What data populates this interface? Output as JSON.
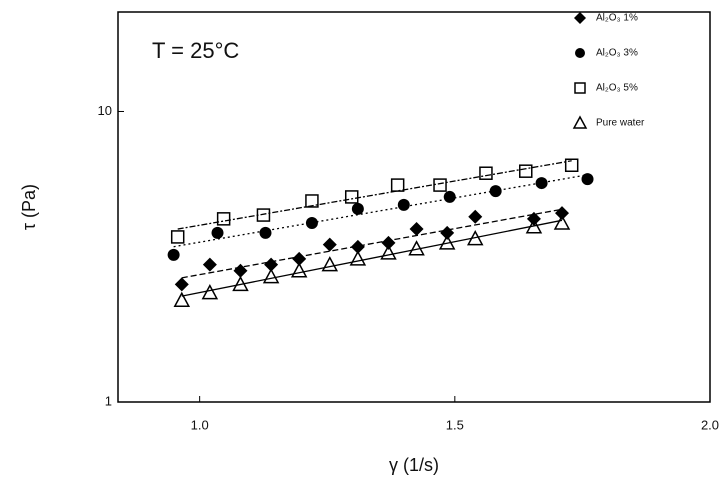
{
  "chart_data": {
    "type": "scatter",
    "annotation": "T = 25°C",
    "x_label": "γ (1/s)",
    "y_label": "τ (Pa)",
    "xlim": [
      0.84,
      2.0
    ],
    "ylim": [
      1,
      22
    ],
    "log_y": true,
    "trendlines": true,
    "xticks": [
      {
        "value": 1,
        "label": "1.0"
      },
      1.5,
      {
        "value": 2,
        "label": "2.0"
      }
    ],
    "yticks": [
      1,
      10
    ],
    "legend": "top-right",
    "series": [
      {
        "name": "Al₂O₃ 1%",
        "color": "#000000",
        "marker": "diamond",
        "x": [
          0.965,
          1.02,
          1.08,
          1.14,
          1.195,
          1.255,
          1.31,
          1.37,
          1.425,
          1.485,
          1.54,
          1.655,
          1.71
        ],
        "values": [
          2.54,
          2.97,
          2.83,
          2.97,
          3.11,
          3.48,
          3.42,
          3.53,
          3.94,
          3.82,
          4.34,
          4.27,
          4.47
        ]
      },
      {
        "name": "Al₂O₃ 3%",
        "color": "#000000",
        "marker": "circle",
        "x": [
          0.949,
          1.035,
          1.129,
          1.22,
          1.31,
          1.4,
          1.49,
          1.58,
          1.67,
          1.76
        ],
        "values": [
          3.21,
          3.82,
          3.82,
          4.13,
          4.62,
          4.77,
          5.08,
          5.32,
          5.67,
          5.85
        ]
      },
      {
        "name": "Al₂O₃ 5%",
        "color": "#000000",
        "marker": "square",
        "x": [
          0.957,
          1.047,
          1.125,
          1.22,
          1.298,
          1.388,
          1.471,
          1.561,
          1.639,
          1.729
        ],
        "values": [
          3.7,
          4.27,
          4.4,
          4.92,
          5.08,
          5.58,
          5.58,
          6.13,
          6.23,
          6.53
        ]
      },
      {
        "name": "Pure water",
        "color": "#000000",
        "marker": "triangle",
        "x": [
          0.965,
          1.02,
          1.08,
          1.14,
          1.195,
          1.255,
          1.31,
          1.37,
          1.425,
          1.485,
          1.54,
          1.655,
          1.71
        ],
        "values": [
          2.24,
          2.38,
          2.54,
          2.7,
          2.83,
          2.97,
          3.11,
          3.26,
          3.37,
          3.53,
          3.65,
          4.01,
          4.13
        ]
      }
    ]
  }
}
